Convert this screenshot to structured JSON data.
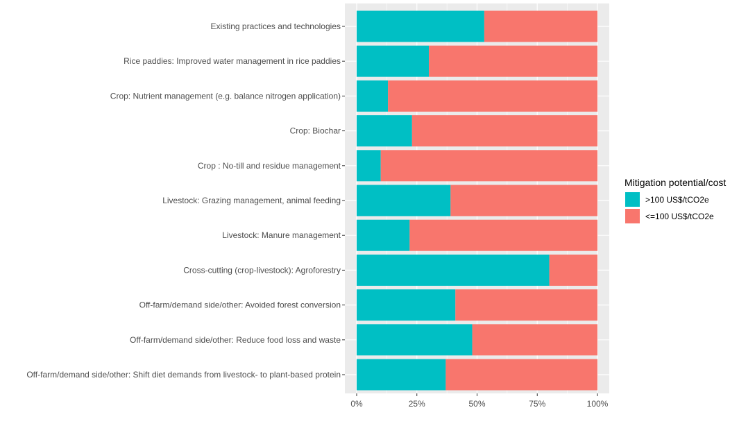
{
  "chart_data": {
    "type": "bar",
    "orientation": "horizontal",
    "stacked": true,
    "percent": true,
    "categories": [
      "Existing practices and technologies",
      "Rice paddies: Improved water management in rice paddies",
      "Crop: Nutrient management (e.g. balance nitrogen application)",
      "Crop: Biochar",
      "Crop : No-till and residue management",
      "Livestock: Grazing management, animal feeding",
      "Livestock: Manure management",
      "Cross-cutting (crop-livestock): Agroforestry",
      "Off-farm/demand side/other: Avoided forest conversion",
      "Off-farm/demand side/other: Reduce food loss and waste",
      "Off-farm/demand side/other: Shift diet demands from livestock- to plant-based protein"
    ],
    "series": [
      {
        "name": ">100 US$/tCO2e",
        "color": "#00BFC4",
        "values": [
          0.53,
          0.3,
          0.13,
          0.23,
          0.1,
          0.39,
          0.22,
          0.8,
          0.41,
          0.48,
          0.37
        ]
      },
      {
        "name": "<=100 US$/tCO2e",
        "color": "#F8766D",
        "values": [
          0.47,
          0.7,
          0.87,
          0.77,
          0.9,
          0.61,
          0.78,
          0.2,
          0.59,
          0.52,
          0.63
        ]
      }
    ],
    "xlim": [
      0,
      1
    ],
    "x_ticks": [
      0,
      0.25,
      0.5,
      0.75,
      1
    ],
    "x_tick_labels": [
      "0%",
      "25%",
      "50%",
      "75%",
      "100%"
    ],
    "title": "",
    "xlabel": "",
    "ylabel": "",
    "legend": {
      "title": "Mitigation potential/cost",
      "position": "right"
    },
    "grid": true,
    "panel_background": "#EBEBEB",
    "grid_color": "#FFFFFF"
  }
}
